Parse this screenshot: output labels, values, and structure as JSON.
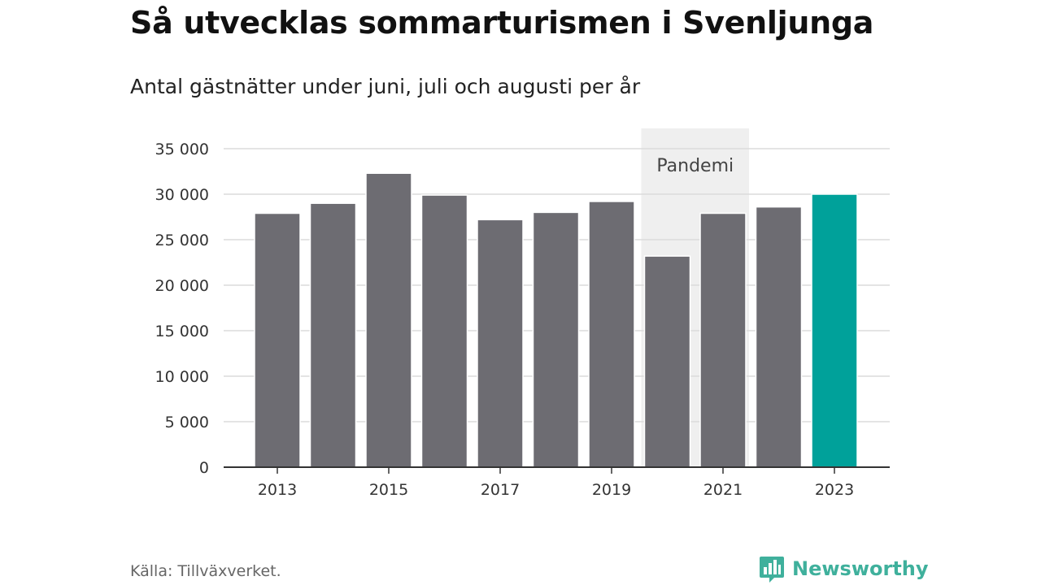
{
  "header": {
    "title": "Så utvecklas sommarturismen i Svenljunga",
    "subtitle": "Antal gästnätter under juni, juli och augusti per år"
  },
  "footer": {
    "source": "Källa: Tillväxverket.",
    "brand": "Newsworthy",
    "brand_icon": "bar-chart-speech-bubble-icon"
  },
  "colors": {
    "bar": "#6d6c72",
    "highlight": "#00a19a",
    "band": "#efefef",
    "grid": "#dcdcdc",
    "axis": "#333333",
    "brand": "#3fb09c"
  },
  "chart_data": {
    "type": "bar",
    "categories": [
      "2013",
      "2014",
      "2015",
      "2016",
      "2017",
      "2018",
      "2019",
      "2020",
      "2021",
      "2022",
      "2023"
    ],
    "values": [
      27900,
      29000,
      32300,
      29900,
      27200,
      28000,
      29200,
      23200,
      27900,
      28600,
      30000
    ],
    "highlight_category": "2023",
    "x_tick_labels": [
      "2013",
      "2015",
      "2017",
      "2019",
      "2021",
      "2023"
    ],
    "y_ticks": [
      0,
      5000,
      10000,
      15000,
      20000,
      25000,
      30000,
      35000
    ],
    "y_tick_labels": [
      "0",
      "5 000",
      "10 000",
      "15 000",
      "20 000",
      "25 000",
      "30 000",
      "35 000"
    ],
    "ylim": [
      0,
      35000
    ],
    "grid": true,
    "annotation": {
      "label": "Pandemi",
      "from_category": "2020",
      "to_category": "2021"
    }
  }
}
